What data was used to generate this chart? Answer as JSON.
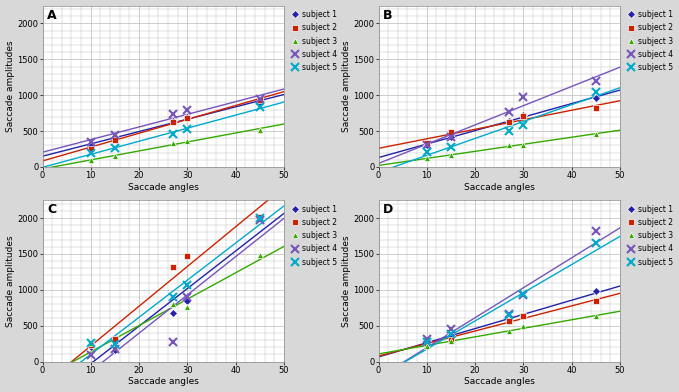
{
  "panels": [
    "A",
    "B",
    "C",
    "D"
  ],
  "x_angles": [
    10,
    15,
    27,
    30,
    45
  ],
  "subjects": [
    {
      "name": "subject 1",
      "color": "#2222aa",
      "marker": "D",
      "ms": 4,
      "mew": 0.5
    },
    {
      "name": "subject 2",
      "color": "#cc2200",
      "marker": "s",
      "ms": 4,
      "mew": 0.5
    },
    {
      "name": "subject 3",
      "color": "#33aa00",
      "marker": "^",
      "ms": 5,
      "mew": 0.5
    },
    {
      "name": "subject 4",
      "color": "#7755bb",
      "marker": "x",
      "ms": 6,
      "mew": 1.5
    },
    {
      "name": "subject 5",
      "color": "#00aacc",
      "marker": "x",
      "ms": 6,
      "mew": 1.5
    }
  ],
  "A": {
    "subject 1": [
      290,
      410,
      640,
      700,
      890
    ],
    "subject 2": [
      250,
      380,
      630,
      680,
      930
    ],
    "subject 3": [
      90,
      150,
      330,
      360,
      520
    ],
    "subject 4": [
      350,
      440,
      740,
      790,
      940
    ],
    "subject 5": [
      190,
      270,
      460,
      530,
      830
    ]
  },
  "B": {
    "subject 1": [
      300,
      420,
      640,
      720,
      960
    ],
    "subject 2": [
      340,
      490,
      620,
      710,
      820
    ],
    "subject 3": [
      120,
      160,
      300,
      310,
      460
    ],
    "subject 4": [
      300,
      420,
      760,
      970,
      1200
    ],
    "subject 5": [
      210,
      280,
      500,
      590,
      1040
    ]
  },
  "C": {
    "subject 1": [
      200,
      160,
      670,
      850,
      2000
    ],
    "subject 2": [
      230,
      310,
      1320,
      1470,
      2020
    ],
    "subject 3": [
      260,
      200,
      800,
      760,
      1480
    ],
    "subject 4": [
      90,
      175,
      270,
      900,
      1980
    ],
    "subject 5": [
      260,
      250,
      900,
      1070,
      2000
    ]
  },
  "D": {
    "subject 1": [
      280,
      370,
      560,
      640,
      980
    ],
    "subject 2": [
      260,
      300,
      560,
      640,
      840
    ],
    "subject 3": [
      220,
      280,
      420,
      490,
      630
    ],
    "subject 4": [
      310,
      460,
      660,
      930,
      1820
    ],
    "subject 5": [
      270,
      380,
      650,
      940,
      1650
    ]
  },
  "ylabel": "Saccade amplitudes",
  "xlabel": "Saccade angles",
  "xlim": [
    0,
    50
  ],
  "ylim": [
    0,
    2250
  ],
  "yticks": [
    0,
    500,
    1000,
    1500,
    2000
  ],
  "xticks": [
    0,
    10,
    20,
    30,
    40,
    50
  ],
  "grid_color": "#bbbbbb",
  "fig_bg": "#d8d8d8",
  "panel_bg": "#ffffff"
}
